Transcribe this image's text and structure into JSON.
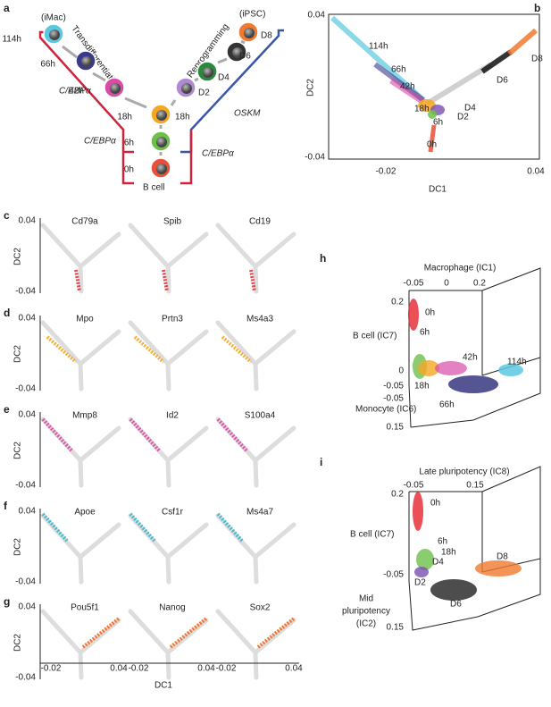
{
  "panel_a": {
    "letter": "a",
    "imac": "(iMac)",
    "ipsc": "(iPSC)",
    "nodes": [
      "114h",
      "66h",
      "42h",
      "18h",
      "18h",
      "6h",
      "0h",
      "D2",
      "D4",
      "D6",
      "D8"
    ],
    "arrow_left": "Transdifferentiation",
    "arrow_right": "Reprogramming",
    "factor_1": "C/EBPα",
    "factor_2": "C/EBPα",
    "factor_3": "C/EBPα",
    "factor_4": "OSKM",
    "start": "B cell"
  },
  "panel_b": {
    "letter": "b",
    "xlabel": "DC1",
    "ylabel": "DC2",
    "xticks": [
      "-0.02",
      "0.04"
    ],
    "yticks": [
      "0.04",
      "-0.04"
    ],
    "labels": [
      "114h",
      "66h",
      "42h",
      "18h",
      "6h",
      "D2",
      "D4",
      "D6",
      "D8",
      "0h"
    ]
  },
  "panels_cg": [
    {
      "letter": "c",
      "genes": [
        "Cd79a",
        "Spib",
        "Cd19"
      ],
      "yticks": [
        "0.04",
        "-0.04"
      ],
      "ylabel": "DC2"
    },
    {
      "letter": "d",
      "genes": [
        "Mpo",
        "Prtn3",
        "Ms4a3"
      ],
      "yticks": [
        "0.04",
        "-0.04"
      ],
      "ylabel": "DC2"
    },
    {
      "letter": "e",
      "genes": [
        "Mmp8",
        "Id2",
        "S100a4"
      ],
      "yticks": [
        "0.04",
        "-0.04"
      ],
      "ylabel": "DC2"
    },
    {
      "letter": "f",
      "genes": [
        "Apoe",
        "Csf1r",
        "Ms4a7"
      ],
      "yticks": [
        "0.04",
        "-0.04"
      ],
      "ylabel": "DC2"
    },
    {
      "letter": "g",
      "genes": [
        "Pou5f1",
        "Nanog",
        "Sox2"
      ],
      "yticks": [
        "0.04",
        "-0.04"
      ],
      "ylabel": "DC2"
    }
  ],
  "x_axis_cg": {
    "ticks": [
      "-0.02",
      "0.04",
      "-0.02",
      "0.04",
      "-0.02",
      "0.04"
    ],
    "label": "DC1"
  },
  "panel_h": {
    "letter": "h",
    "top_axis": "Macrophage (IC1)",
    "top_ticks": [
      "-0.05",
      "0",
      "0.2"
    ],
    "left_axis": "B cell (IC7)",
    "left_ticks": [
      "0.2",
      "0",
      "-0.05"
    ],
    "depth_axis": "Monocyte (IC6)",
    "depth_ticks": [
      "-0.05",
      "0.15"
    ],
    "labels": [
      "0h",
      "6h",
      "42h",
      "114h",
      "18h",
      "66h"
    ]
  },
  "panel_i": {
    "letter": "i",
    "top_axis": "Late pluripotency (IC8)",
    "top_ticks": [
      "-0.05",
      "0.15"
    ],
    "left_axis": "B cell (IC7)",
    "left_ticks": [
      "0.2",
      "-0.05"
    ],
    "depth_axis": [
      "Mid",
      "pluripotency",
      "(IC2)"
    ],
    "depth_ticks": [
      "0.15"
    ],
    "labels": [
      "0h",
      "6h",
      "18h",
      "D4",
      "D8",
      "D2",
      "D6"
    ]
  }
}
